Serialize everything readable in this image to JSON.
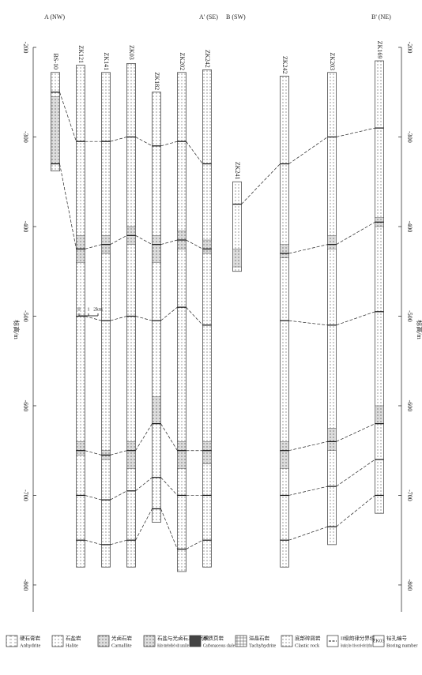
{
  "panels": [
    {
      "start": "A (NW)",
      "end": "A' (SE)",
      "axis_label": "标高/m",
      "ylim": [
        -200,
        -830
      ],
      "yticks": [
        -200,
        -300,
        -400,
        -500,
        -600,
        -700,
        -800
      ],
      "scale_bar": [
        "0",
        "1",
        "2km"
      ],
      "boreholes": [
        {
          "name": "BS-10",
          "top": -228,
          "bottom": -338,
          "boundaries": [
            -250,
            -330
          ],
          "carnallite": [
            [
              -255,
              -330
            ]
          ]
        },
        {
          "name": "ZK121",
          "top": -220,
          "bottom": -780,
          "boundaries": [
            -305,
            -425,
            -500,
            -650,
            -700,
            -750
          ],
          "carnallite": [
            [
              -410,
              -440
            ],
            [
              -640,
              -655
            ]
          ]
        },
        {
          "name": "ZK141",
          "top": -228,
          "bottom": -780,
          "boundaries": [
            -305,
            -420,
            -505,
            -655,
            -705,
            -755
          ],
          "carnallite": [
            [
              -410,
              -430
            ],
            [
              -650,
              -660
            ]
          ]
        },
        {
          "name": "ZK03",
          "top": -218,
          "bottom": -780,
          "boundaries": [
            -300,
            -410,
            -500,
            -650,
            -695,
            -750
          ],
          "carnallite": [
            [
              -400,
              -420
            ],
            [
              -640,
              -670
            ]
          ]
        },
        {
          "name": "ZK182",
          "top": -250,
          "bottom": -730,
          "boundaries": [
            -310,
            -420,
            -505,
            -620,
            -680,
            -715
          ],
          "carnallite": [
            [
              -410,
              -440
            ],
            [
              -590,
              -620
            ]
          ]
        },
        {
          "name": "ZK202",
          "top": -228,
          "bottom": -785,
          "boundaries": [
            -305,
            -415,
            -490,
            -650,
            -700,
            -760
          ],
          "carnallite": [
            [
              -405,
              -425
            ],
            [
              -640,
              -670
            ]
          ]
        },
        {
          "name": "ZK242",
          "top": -225,
          "bottom": -780,
          "boundaries": [
            -330,
            -425,
            -510,
            -650,
            -700,
            -750
          ],
          "carnallite": [
            [
              -415,
              -430
            ],
            [
              -640,
              -665
            ]
          ]
        }
      ]
    },
    {
      "start": "B (SW)",
      "end": "B' (NE)",
      "axis_label": "标高/m",
      "ylim": [
        -200,
        -830
      ],
      "yticks": [
        -200,
        -300,
        -400,
        -500,
        -600,
        -700,
        -800
      ],
      "boreholes": [
        {
          "name": "ZK241",
          "top": -350,
          "bottom": -450,
          "boundaries": [
            -375
          ],
          "carnallite": [
            [
              -425,
              -445
            ]
          ]
        },
        {
          "name": "ZK242",
          "top": -232,
          "bottom": -780,
          "boundaries": [
            -330,
            -430,
            -505,
            -650,
            -700,
            -750
          ],
          "carnallite": [
            [
              -420,
              -435
            ],
            [
              -640,
              -670
            ]
          ]
        },
        {
          "name": "ZK203",
          "top": -228,
          "bottom": -755,
          "boundaries": [
            -300,
            -420,
            -510,
            -640,
            -690,
            -735
          ],
          "carnallite": [
            [
              -410,
              -425
            ],
            [
              -625,
              -650
            ]
          ]
        },
        {
          "name": "ZK169",
          "top": -215,
          "bottom": -720,
          "boundaries": [
            -290,
            -395,
            -495,
            -620,
            -660,
            -700
          ],
          "carnallite": [
            [
              -390,
              -400
            ],
            [
              -600,
              -620
            ]
          ]
        }
      ]
    }
  ],
  "legend": [
    {
      "zh": "硬石膏岩",
      "en": "Anhydrite"
    },
    {
      "zh": "石盐岩",
      "en": "Halite"
    },
    {
      "zh": "光卤石岩",
      "en": "Carnallite"
    },
    {
      "zh": "石盐与光卤石互层沉积",
      "en": "Halite interbedded with carnallite"
    },
    {
      "zh": "碳质页岩",
      "en": "Carbonaceous shale"
    },
    {
      "zh": "溢晶石岩",
      "en": "Tachyhydrite"
    },
    {
      "zh": "底部碎屑岩",
      "en": "Clastic rock"
    },
    {
      "zh": "II级韵律分界线",
      "en": "Boundary line of the second-order rhythms"
    },
    {
      "zh": "钻孔编号",
      "en": "Boring number",
      "sample": "ZK03"
    }
  ]
}
